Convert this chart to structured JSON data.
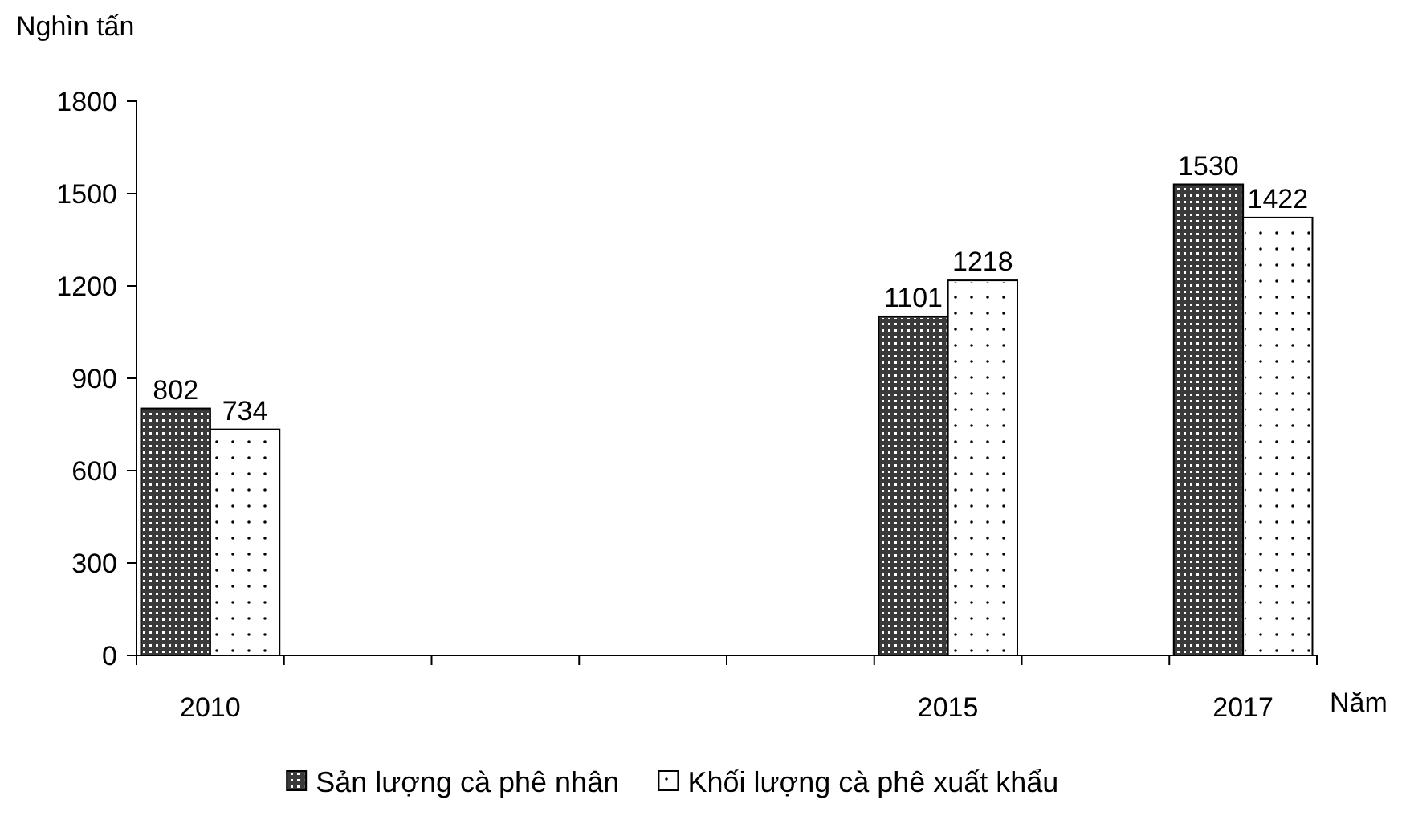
{
  "chart_data": {
    "type": "bar",
    "ylabel": "Nghìn tấn",
    "xlabel": "Năm",
    "categories": [
      "2010",
      null,
      null,
      null,
      null,
      "2015",
      null,
      "2017"
    ],
    "series": [
      {
        "name": "Sản lượng cà phê nhân",
        "color": "#3a3a3a",
        "values": [
          802,
          null,
          null,
          null,
          null,
          1101,
          null,
          1530
        ]
      },
      {
        "name": "Khối lượng cà phê xuất khẩu",
        "color": "#ffffff",
        "values": [
          734,
          null,
          null,
          null,
          null,
          1218,
          null,
          1422
        ]
      }
    ],
    "ylim": [
      0,
      1800
    ],
    "yticks": [
      0,
      300,
      600,
      900,
      1200,
      1500,
      1800
    ],
    "grid": false,
    "legend": "bottom",
    "data_labels": true
  }
}
